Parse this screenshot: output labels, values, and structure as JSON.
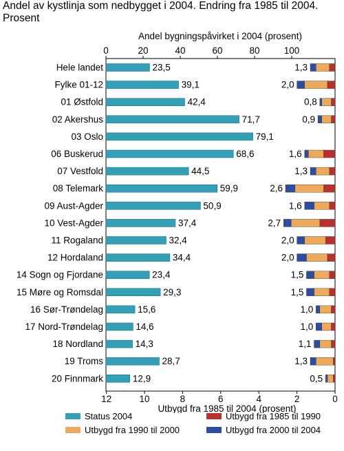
{
  "title": "Andel av kystlinja som nedbygget i 2004. Endring fra 1985 til 2004. Prosent",
  "colors": {
    "status": "#33a0b8",
    "period_1985_1990": "#b8312f",
    "period_1990_2000": "#efa95a",
    "period_2000_2004": "#2b4ea3"
  },
  "legend": [
    {
      "key": "status",
      "label": "Status 2004"
    },
    {
      "key": "period_1985_1990",
      "label": "Utbygd fra 1985 til 1990"
    },
    {
      "key": "period_1990_2000",
      "label": "Utbygd fra 1990 til 2000"
    },
    {
      "key": "period_2000_2004",
      "label": "Utbygd fra 2000 til 2004"
    }
  ],
  "chart_data": {
    "type": "bar",
    "categories": [
      "Hele landet",
      "Fylke 01-12",
      "01 Østfold",
      "02 Akershus",
      "03 Oslo",
      "06 Buskerud",
      "07 Vestfold",
      "08 Telemark",
      "09 Aust-Agder",
      "10 Vest-Agder",
      "11 Rogaland",
      "12 Hordaland",
      "14 Sogn og Fjordane",
      "15 Møre og Romsdal",
      "16 Sør-Trøndelag",
      "17 Nord-Trøndelag",
      "18 Nordland",
      "19 Troms",
      "20 Finnmark"
    ],
    "top_axis": {
      "label": "Andel bygningspåvirket i 2004 (prosent)",
      "range": [
        0,
        100
      ],
      "ticks": [
        0,
        20,
        40,
        60,
        80,
        100
      ]
    },
    "bottom_axis": {
      "label": "Utbygd fra 1985 til 2004 (prosent)",
      "range": [
        12,
        0
      ],
      "ticks": [
        12,
        10,
        8,
        6,
        4,
        2,
        0
      ]
    },
    "status_2004": {
      "name": "Status 2004",
      "values": [
        23.5,
        39.1,
        42.4,
        71.7,
        79.1,
        68.6,
        44.5,
        59.9,
        50.9,
        37.4,
        32.4,
        34.4,
        23.4,
        29.3,
        15.6,
        14.6,
        14.3,
        28.7,
        12.9
      ],
      "labels": [
        "23,5",
        "39,1",
        "42,4",
        "71,7",
        "79,1",
        "68,6",
        "44,5",
        "59,9",
        "50,9",
        "37,4",
        "32,4",
        "34,4",
        "23,4",
        "29,3",
        "15,6",
        "14,6",
        "14,3",
        "28,7",
        "12,9"
      ]
    },
    "change_total": {
      "values": [
        1.3,
        2.0,
        0.8,
        0.9,
        null,
        1.6,
        1.3,
        2.6,
        1.6,
        2.7,
        2.0,
        2.0,
        1.5,
        1.5,
        1.0,
        1.0,
        1.1,
        1.3,
        0.5
      ],
      "labels": [
        "1,3",
        "2,0",
        "0,8",
        "0,9",
        "",
        "1,6",
        "1,3",
        "2,6",
        "1,6",
        "2,7",
        "2,0",
        "2,0",
        "1,5",
        "1,5",
        "1,0",
        "1,0",
        "1,1",
        "1,3",
        "0,5"
      ]
    },
    "change_series": [
      {
        "name": "Utbygd fra 1985 til 1990",
        "key": "period_1985_1990",
        "values": [
          0.3,
          0.4,
          0.2,
          0.2,
          null,
          0.6,
          0.3,
          0.6,
          0.3,
          0.8,
          0.5,
          0.4,
          0.3,
          0.3,
          0.2,
          0.2,
          0.2,
          0.1,
          0.1
        ]
      },
      {
        "name": "Utbygd fra 1990 til 2000",
        "key": "period_1990_2000",
        "values": [
          0.7,
          1.2,
          0.5,
          0.5,
          null,
          0.8,
          0.7,
          1.5,
          0.8,
          1.5,
          1.1,
          1.1,
          0.8,
          0.8,
          0.6,
          0.5,
          0.6,
          0.9,
          0.3
        ],
        "note": ""
      },
      {
        "name": "Utbygd fra 2000 til 2004",
        "key": "period_2000_2004",
        "values": [
          0.3,
          0.4,
          0.1,
          0.2,
          null,
          0.2,
          0.3,
          0.5,
          0.5,
          0.4,
          0.4,
          0.5,
          0.4,
          0.4,
          0.2,
          0.3,
          0.3,
          0.3,
          0.1
        ]
      }
    ]
  }
}
